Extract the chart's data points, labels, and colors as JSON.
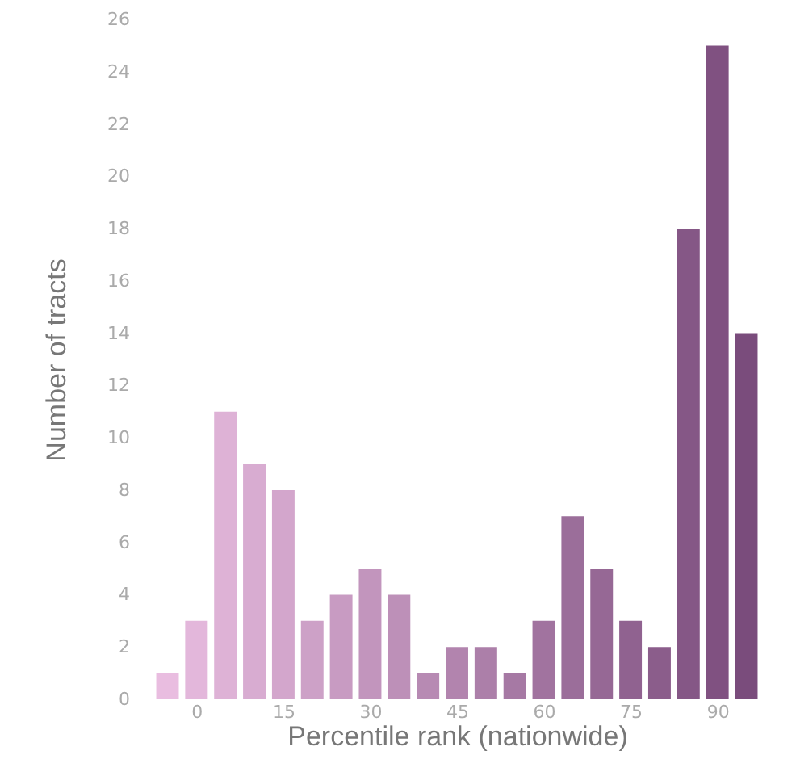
{
  "chart_data": {
    "type": "bar",
    "xlabel": "Percentile rank (nationwide)",
    "ylabel": "Number of tracts",
    "x": [
      -5,
      0,
      5,
      10,
      15,
      20,
      25,
      30,
      35,
      40,
      45,
      50,
      55,
      60,
      65,
      70,
      75,
      80,
      85,
      90,
      95
    ],
    "values": [
      1,
      3,
      11,
      9,
      8,
      3,
      4,
      5,
      4,
      1,
      2,
      2,
      1,
      3,
      7,
      5,
      3,
      2,
      18,
      25,
      14
    ],
    "colors": [
      "#e9bde0",
      "#e3b7db",
      "#deb2d6",
      "#d8acd1",
      "#d3a6cc",
      "#cda1c7",
      "#c89bc2",
      "#c295bd",
      "#bd90b8",
      "#b78ab3",
      "#b284ae",
      "#ac7fa9",
      "#a679a4",
      "#a1739f",
      "#9b6e9a",
      "#966895",
      "#906290",
      "#8b5d8b",
      "#855786",
      "#805181",
      "#7a4c7c"
    ],
    "xlim": [
      -8,
      98
    ],
    "xticks": [
      0,
      15,
      30,
      45,
      60,
      75,
      90
    ],
    "ylim": [
      0,
      26
    ],
    "yticks": [
      0,
      2,
      4,
      6,
      8,
      10,
      12,
      14,
      16,
      18,
      20,
      22,
      24,
      26
    ],
    "grid": false
  }
}
